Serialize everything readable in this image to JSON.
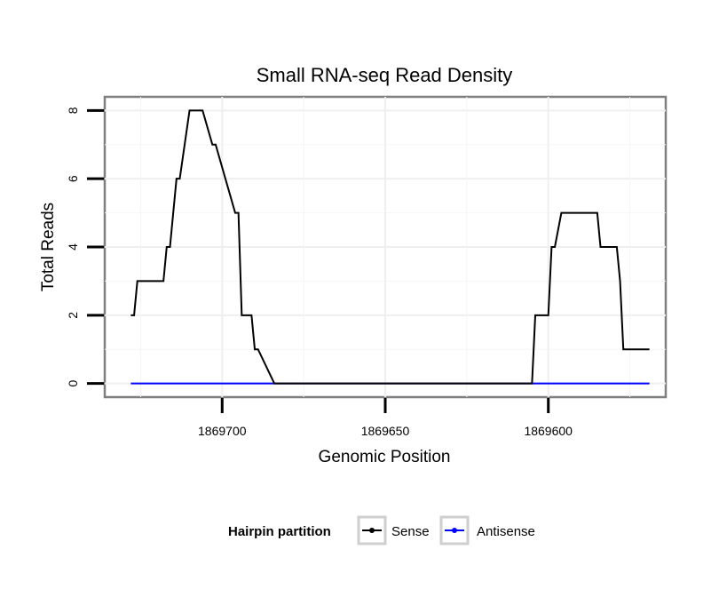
{
  "chart_data": {
    "type": "line",
    "title": "Small RNA-seq Read Density",
    "xlabel": "Genomic Position",
    "ylabel": "Total Reads",
    "x_reversed": true,
    "xlim": [
      1869736,
      1869564
    ],
    "ylim": [
      -0.4,
      8.4
    ],
    "x_ticks": [
      1869700,
      1869650,
      1869600
    ],
    "x_tick_labels": [
      "1869700",
      "1869650",
      "1869600"
    ],
    "y_ticks": [
      0,
      2,
      4,
      6,
      8
    ],
    "y_tick_labels": [
      "0",
      "2",
      "4",
      "6",
      "8"
    ],
    "legend": {
      "title": "Hairpin partition",
      "position": "bottom",
      "entries": [
        {
          "label": "Sense",
          "color": "#000000"
        },
        {
          "label": "Antisense",
          "color": "#0000ff"
        }
      ]
    },
    "series": [
      {
        "name": "Sense",
        "color": "#000000",
        "x": [
          1869728,
          1869727,
          1869726,
          1869718,
          1869717,
          1869716,
          1869714,
          1869713,
          1869710,
          1869708,
          1869706,
          1869703,
          1869702,
          1869696,
          1869695,
          1869694,
          1869691,
          1869690,
          1869689,
          1869684,
          1869683,
          1869677,
          1869676,
          1869605,
          1869604,
          1869600,
          1869599,
          1869598,
          1869596,
          1869595,
          1869585,
          1869584,
          1869579,
          1869578,
          1869577,
          1869573,
          1869569
        ],
        "y": [
          2,
          2,
          3,
          3,
          4,
          4,
          6,
          6,
          8,
          8,
          8,
          7,
          7,
          5,
          5,
          2,
          2,
          1,
          1,
          0,
          0,
          0,
          0,
          0,
          2,
          2,
          4,
          4,
          5,
          5,
          5,
          4,
          4,
          3,
          1,
          1,
          1
        ]
      },
      {
        "name": "Antisense",
        "color": "#0000ff",
        "x": [
          1869728,
          1869569
        ],
        "y": [
          0,
          0
        ]
      }
    ]
  }
}
